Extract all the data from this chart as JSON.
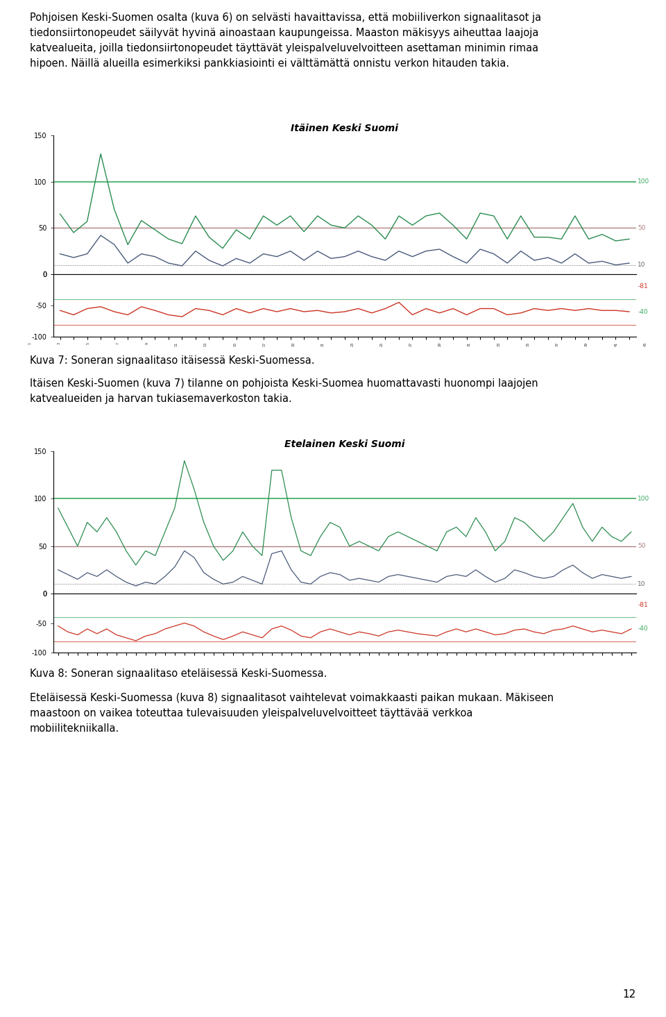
{
  "page_text_top": [
    "Pohjoisen Keski-Suomen osalta (kuva 6) on selvästi havaittavissa, että mobiiliverkon signaalitasot ja",
    "tiedonsiirtonopeudet säilyvät hyvinä ainoastaan kaupungeissa. Maaston mäkisyys aiheuttaa laajoja",
    "katvealueita, joilla tiedonsiirtonopeudet täyttävät yleispalveluvelvoitteen asettaman minimin rimaa",
    "hipoen. Näillä alueilla esimerkiksi pankkiasiointi ei välttämättä onnistu verkon hitauden takia."
  ],
  "chart1_title": "Itäinen Keski Suomi",
  "chart2_title": "Etelainen Keski Suomi",
  "caption1": "Kuva 7: Soneran signaalitaso itäisessä Keski-Suomessa.",
  "caption2": "Kuva 8: Soneran signaalitaso eteläisessä Keski-Suomessa.",
  "text_between": [
    "Itäisen Keski-Suomen (kuva 7) tilanne on pohjoista Keski-Suomea huomattavasti huonompi laajojen",
    "katvealueiden ja harvan tukiasemaverkoston takia."
  ],
  "text_bottom": [
    "Eteläisessä Keski-Suomessa (kuva 8) signaalitasot vaihtelevat voimakkaasti paikan mukaan. Mäkiseen",
    "maastoon on vaikea toteuttaa tulevaisuuden yleispalveluvelvoitteet täyttävää verkkoa",
    "mobiilitekniikalla."
  ],
  "page_number": "12",
  "background_color": "#ffffff",
  "text_color": "#000000",
  "chart1_green": [
    65,
    45,
    57,
    130,
    70,
    32,
    58,
    48,
    38,
    33,
    63,
    40,
    28,
    48,
    38,
    63,
    53,
    63,
    46,
    63,
    53,
    50,
    63,
    53,
    38,
    63,
    53,
    63,
    66,
    53,
    38,
    66,
    63,
    38,
    63,
    40,
    40,
    38,
    63,
    38,
    43,
    36,
    38
  ],
  "chart1_blue": [
    22,
    18,
    22,
    42,
    32,
    12,
    22,
    19,
    12,
    9,
    25,
    15,
    9,
    17,
    12,
    22,
    19,
    25,
    15,
    25,
    17,
    19,
    25,
    19,
    15,
    25,
    19,
    25,
    27,
    19,
    12,
    27,
    22,
    12,
    25,
    15,
    18,
    12,
    22,
    12,
    14,
    10,
    12
  ],
  "chart1_red": [
    -58,
    -65,
    -55,
    -52,
    -60,
    -65,
    -52,
    -58,
    -65,
    -68,
    -55,
    -58,
    -65,
    -55,
    -62,
    -55,
    -60,
    -55,
    -60,
    -58,
    -62,
    -60,
    -55,
    -62,
    -55,
    -45,
    -65,
    -55,
    -62,
    -55,
    -65,
    -55,
    -55,
    -65,
    -62,
    -55,
    -58,
    -55,
    -58,
    -55,
    -58,
    -58,
    -60
  ],
  "chart2_green": [
    90,
    70,
    50,
    75,
    65,
    80,
    65,
    45,
    30,
    45,
    40,
    65,
    90,
    140,
    110,
    75,
    50,
    35,
    45,
    65,
    50,
    40,
    130,
    130,
    80,
    45,
    40,
    60,
    75,
    70,
    50,
    55,
    50,
    45,
    60,
    65,
    60,
    55,
    50,
    45,
    65,
    70,
    60,
    80,
    65,
    45,
    55,
    80,
    75,
    65,
    55,
    65,
    80,
    95,
    70,
    55,
    70,
    60,
    55,
    65
  ],
  "chart2_blue": [
    25,
    20,
    15,
    22,
    18,
    25,
    18,
    12,
    8,
    12,
    10,
    18,
    28,
    45,
    38,
    22,
    15,
    10,
    12,
    18,
    14,
    10,
    42,
    45,
    25,
    12,
    10,
    18,
    22,
    20,
    14,
    16,
    14,
    12,
    18,
    20,
    18,
    16,
    14,
    12,
    18,
    20,
    18,
    25,
    18,
    12,
    16,
    25,
    22,
    18,
    16,
    18,
    25,
    30,
    22,
    16,
    20,
    18,
    16,
    18
  ],
  "chart2_red": [
    -55,
    -65,
    -70,
    -60,
    -68,
    -60,
    -70,
    -75,
    -80,
    -72,
    -68,
    -60,
    -55,
    -50,
    -55,
    -65,
    -72,
    -78,
    -72,
    -65,
    -70,
    -75,
    -60,
    -55,
    -62,
    -72,
    -75,
    -65,
    -60,
    -65,
    -70,
    -65,
    -68,
    -72,
    -65,
    -62,
    -65,
    -68,
    -70,
    -72,
    -65,
    -60,
    -65,
    -60,
    -65,
    -70,
    -68,
    -62,
    -60,
    -65,
    -68,
    -62,
    -60,
    -55,
    -60,
    -65,
    -62,
    -65,
    -68,
    -60
  ],
  "n1": 43,
  "n2": 60
}
